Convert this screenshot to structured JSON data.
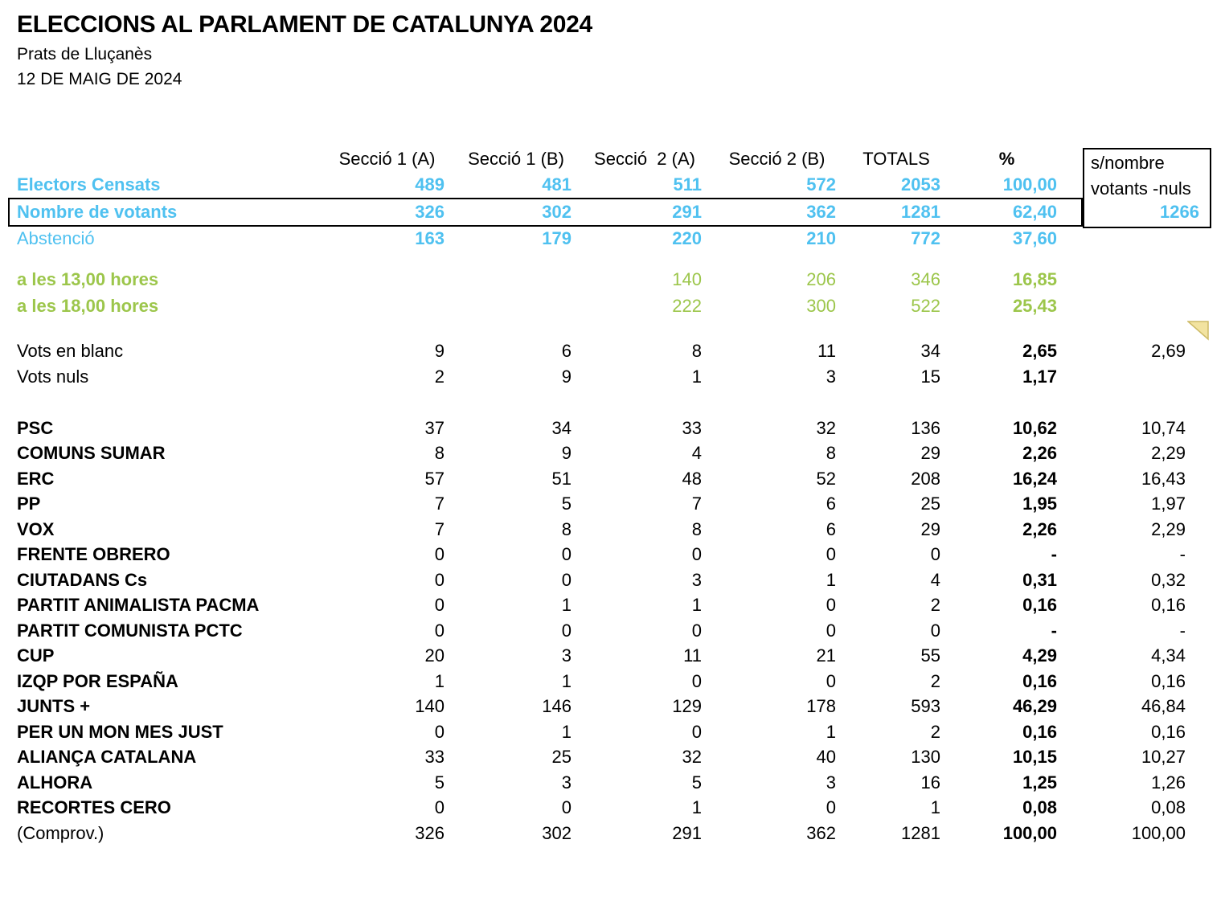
{
  "header": {
    "title": "ELECCIONS AL PARLAMENT DE CATALUNYA 2024",
    "municipality": "Prats de Lluçanès",
    "date": "12 DE MAIG DE 2024"
  },
  "table": {
    "column_headers": [
      "Secció 1 (A)",
      "Secció 1 (B)",
      "Secció  2 (A)",
      "Secció 2 (B)",
      "TOTALS",
      "%"
    ],
    "side_box": {
      "line1": "s/nombre",
      "line2": "votants -nuls"
    },
    "groups": [
      {
        "name": "summary",
        "rows": [
          {
            "label": "Electors Censats",
            "style": "blue",
            "values": [
              "489",
              "481",
              "511",
              "572",
              "2053",
              "100,00",
              ""
            ]
          },
          {
            "label": "Nombre de votants",
            "style": "blue",
            "s_flush": true,
            "boxed": true,
            "values": [
              "326",
              "302",
              "291",
              "362",
              "1281",
              "62,40",
              "1266"
            ]
          },
          {
            "label": "Abstenció",
            "style": "blue regular-label",
            "values": [
              "163",
              "179",
              "220",
              "210",
              "772",
              "37,60",
              ""
            ]
          }
        ]
      },
      {
        "name": "turnout",
        "rows": [
          {
            "label": "a les 13,00 hores",
            "style": "green",
            "values": [
              "",
              "",
              "140",
              "206",
              "346",
              "16,85",
              ""
            ]
          },
          {
            "label": "a les 18,00 hores",
            "style": "green",
            "values": [
              "",
              "",
              "222",
              "300",
              "522",
              "25,43",
              ""
            ]
          }
        ]
      },
      {
        "name": "blanknull",
        "rows": [
          {
            "label": "Vots en blanc",
            "style": "plain",
            "values": [
              "9",
              "6",
              "8",
              "11",
              "34",
              "2,65",
              "2,69"
            ]
          },
          {
            "label": "Vots nuls",
            "style": "plain",
            "values": [
              "2",
              "9",
              "1",
              "3",
              "15",
              "1,17",
              ""
            ]
          }
        ]
      },
      {
        "name": "parties",
        "rows": [
          {
            "label": "PSC",
            "style": "party",
            "values": [
              "37",
              "34",
              "33",
              "32",
              "136",
              "10,62",
              "10,74"
            ]
          },
          {
            "label": "COMUNS SUMAR",
            "style": "party",
            "values": [
              "8",
              "9",
              "4",
              "8",
              "29",
              "2,26",
              "2,29"
            ]
          },
          {
            "label": "ERC",
            "style": "party",
            "values": [
              "57",
              "51",
              "48",
              "52",
              "208",
              "16,24",
              "16,43"
            ]
          },
          {
            "label": "PP",
            "style": "party",
            "values": [
              "7",
              "5",
              "7",
              "6",
              "25",
              "1,95",
              "1,97"
            ]
          },
          {
            "label": "VOX",
            "style": "party",
            "values": [
              "7",
              "8",
              "8",
              "6",
              "29",
              "2,26",
              "2,29"
            ]
          },
          {
            "label": "FRENTE OBRERO",
            "style": "party",
            "values": [
              "0",
              "0",
              "0",
              "0",
              "0",
              "-",
              "-"
            ]
          },
          {
            "label": "CIUTADANS Cs",
            "style": "party",
            "values": [
              "0",
              "0",
              "3",
              "1",
              "4",
              "0,31",
              "0,32"
            ]
          },
          {
            "label": "PARTIT ANIMALISTA PACMA",
            "style": "party",
            "values": [
              "0",
              "1",
              "1",
              "0",
              "2",
              "0,16",
              "0,16"
            ]
          },
          {
            "label": "PARTIT COMUNISTA PCTC",
            "style": "party",
            "values": [
              "0",
              "0",
              "0",
              "0",
              "0",
              "-",
              "-"
            ]
          },
          {
            "label": "CUP",
            "style": "party",
            "values": [
              "20",
              "3",
              "11",
              "21",
              "55",
              "4,29",
              "4,34"
            ]
          },
          {
            "label": "IZQP POR ESPAÑA",
            "style": "party",
            "values": [
              "1",
              "1",
              "0",
              "0",
              "2",
              "0,16",
              "0,16"
            ]
          },
          {
            "label": "JUNTS +",
            "style": "party",
            "values": [
              "140",
              "146",
              "129",
              "178",
              "593",
              "46,29",
              "46,84"
            ]
          },
          {
            "label": "PER UN MON MES JUST",
            "style": "party",
            "values": [
              "0",
              "1",
              "0",
              "1",
              "2",
              "0,16",
              "0,16"
            ]
          },
          {
            "label": "ALIANÇA CATALANA",
            "style": "party",
            "values": [
              "33",
              "25",
              "32",
              "40",
              "130",
              "10,15",
              "10,27"
            ]
          },
          {
            "label": "ALHORA",
            "style": "party",
            "values": [
              "5",
              "3",
              "5",
              "3",
              "16",
              "1,25",
              "1,26"
            ]
          },
          {
            "label": "RECORTES CERO",
            "style": "party",
            "values": [
              "0",
              "0",
              "1",
              "0",
              "1",
              "0,08",
              "0,08"
            ]
          },
          {
            "label": "(Comprov.)",
            "style": "plain",
            "values": [
              "326",
              "302",
              "291",
              "362",
              "1281",
              "100,00",
              "100,00"
            ]
          }
        ]
      }
    ]
  },
  "colors": {
    "blue_text": "#4FC1F0",
    "green_text": "#9CC64B",
    "border_black": "#000000",
    "comment_marker_fill": "#F2E3A0",
    "comment_marker_border": "#CDBA66"
  }
}
